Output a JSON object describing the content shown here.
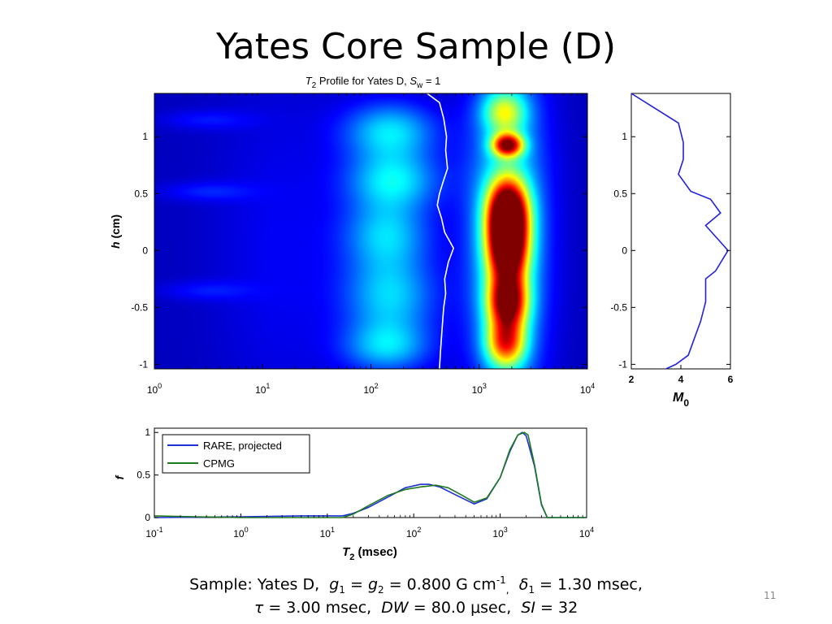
{
  "slide": {
    "title": "Yates Core Sample (D)",
    "page_number": "11"
  },
  "caption": {
    "line1_prefix": "Sample: Yates D,",
    "g1": "g",
    "g1_sub": "1",
    "eq1": "=",
    "g2": "g",
    "g2_sub": "2",
    "g_value": "= 0.800 G cm",
    "g_exp": "-1",
    "sep": ",",
    "delta": "δ",
    "delta_sub": "1",
    "delta_value": "= 1.30 msec,",
    "tau": "τ",
    "tau_value": "= 3.00 msec,",
    "dw": "DW",
    "dw_value": "= 80.0 μsec,",
    "si": "SI",
    "si_value": "= 32"
  },
  "chart_data": [
    {
      "id": "t2-profile",
      "type": "heatmap",
      "title_parts": {
        "t": "T",
        "t_sub": "2",
        "middle": " Profile for Yates D, ",
        "s": "S",
        "s_sub": "w",
        "end": " = 1"
      },
      "xlabel": "",
      "ylabel_parts": {
        "h": "h",
        "rest": " (cm)"
      },
      "x_scale": "log",
      "xlim": [
        1,
        10000
      ],
      "ylim": [
        -1.04,
        1.38
      ],
      "x_ticks": [
        {
          "base": "10",
          "exp": "0"
        },
        {
          "base": "10",
          "exp": "1"
        },
        {
          "base": "10",
          "exp": "2"
        },
        {
          "base": "10",
          "exp": "3"
        },
        {
          "base": "10",
          "exp": "4"
        }
      ],
      "y_ticks": [
        "1",
        "0.5",
        "0",
        "-0.5",
        "-1"
      ],
      "y_tick_values": [
        1,
        0.5,
        0,
        -0.5,
        -1
      ],
      "colormap": "jet",
      "intensity_sources": [
        {
          "t2": 1820,
          "h": 0.34,
          "sigma_log": 0.13,
          "sigma_h": 0.2,
          "amp": 1.0
        },
        {
          "t2": 1820,
          "h": 0.0,
          "sigma_log": 0.13,
          "sigma_h": 0.2,
          "amp": 0.86
        },
        {
          "t2": 1820,
          "h": -0.45,
          "sigma_log": 0.13,
          "sigma_h": 0.17,
          "amp": 0.82
        },
        {
          "t2": 1820,
          "h": 0.93,
          "sigma_log": 0.1,
          "sigma_h": 0.07,
          "amp": 0.78
        },
        {
          "t2": 1750,
          "h": -0.82,
          "sigma_log": 0.13,
          "sigma_h": 0.15,
          "amp": 0.6
        },
        {
          "t2": 1700,
          "h": 1.22,
          "sigma_log": 0.14,
          "sigma_h": 0.13,
          "amp": 0.38
        },
        {
          "t2": 1800,
          "h": 0.2,
          "sigma_log": 0.25,
          "sigma_h": 1.1,
          "amp": 0.35
        },
        {
          "t2": 150,
          "h": 1.05,
          "sigma_log": 0.3,
          "sigma_h": 0.18,
          "amp": 0.3
        },
        {
          "t2": 160,
          "h": 0.62,
          "sigma_log": 0.3,
          "sigma_h": 0.18,
          "amp": 0.3
        },
        {
          "t2": 140,
          "h": 0.15,
          "sigma_log": 0.28,
          "sigma_h": 0.22,
          "amp": 0.27
        },
        {
          "t2": 150,
          "h": -0.4,
          "sigma_log": 0.3,
          "sigma_h": 0.25,
          "amp": 0.28
        },
        {
          "t2": 140,
          "h": -0.85,
          "sigma_log": 0.28,
          "sigma_h": 0.16,
          "amp": 0.26
        },
        {
          "t2": 15,
          "h": 0.0,
          "sigma_log": 0.45,
          "sigma_h": 1.1,
          "amp": 0.06
        },
        {
          "t2": 3,
          "h": 1.15,
          "sigma_log": 0.3,
          "sigma_h": 0.06,
          "amp": 0.08
        },
        {
          "t2": 3,
          "h": 0.52,
          "sigma_log": 0.3,
          "sigma_h": 0.06,
          "amp": 0.09
        },
        {
          "t2": 3,
          "h": -0.35,
          "sigma_log": 0.3,
          "sigma_h": 0.06,
          "amp": 0.08
        }
      ],
      "series": [
        {
          "name": "",
          "color": "#ffffff",
          "x": [
            330,
            430,
            470,
            500,
            490,
            510,
            470,
            430,
            410,
            450,
            480,
            580,
            520,
            480,
            490,
            470,
            460,
            450,
            440,
            430
          ],
          "y": [
            1.38,
            1.3,
            1.16,
            1.0,
            0.88,
            0.72,
            0.62,
            0.5,
            0.4,
            0.28,
            0.16,
            0.02,
            -0.1,
            -0.25,
            -0.38,
            -0.5,
            -0.62,
            -0.75,
            -0.88,
            -1.04
          ]
        }
      ]
    },
    {
      "id": "m0-profile",
      "type": "line",
      "xlabel_parts": {
        "m": "M",
        "sub": "0"
      },
      "ylabel": "",
      "xlim": [
        2,
        6
      ],
      "ylim": [
        -1.04,
        1.38
      ],
      "x_ticks": [
        "2",
        "4",
        "6"
      ],
      "x_tick_values": [
        2,
        4,
        6
      ],
      "y_ticks": [
        "1",
        "0.5",
        "0",
        "-0.5",
        "-1"
      ],
      "y_tick_values": [
        1,
        0.5,
        0,
        -0.5,
        -1
      ],
      "series": [
        {
          "name": "",
          "color": "#2222dd",
          "x": [
            2.0,
            3.9,
            4.1,
            4.1,
            3.9,
            4.4,
            5.2,
            5.6,
            5.0,
            5.9,
            5.4,
            5.0,
            5.0,
            4.8,
            4.3,
            3.8,
            3.4
          ],
          "y": [
            1.38,
            1.12,
            0.95,
            0.8,
            0.67,
            0.52,
            0.45,
            0.33,
            0.22,
            0.0,
            -0.18,
            -0.25,
            -0.45,
            -0.62,
            -0.92,
            -1.0,
            -1.04
          ]
        }
      ]
    },
    {
      "id": "t2-distribution",
      "type": "line",
      "xlabel_parts": {
        "t": "T",
        "t_sub": "2",
        "rest": " (msec)"
      },
      "ylabel": "f",
      "x_scale": "log",
      "xlim": [
        0.1,
        10000
      ],
      "ylim": [
        0,
        1.05
      ],
      "x_ticks": [
        {
          "base": "10",
          "exp": "-1"
        },
        {
          "base": "10",
          "exp": "0"
        },
        {
          "base": "10",
          "exp": "1"
        },
        {
          "base": "10",
          "exp": "2"
        },
        {
          "base": "10",
          "exp": "3"
        },
        {
          "base": "10",
          "exp": "4"
        }
      ],
      "y_ticks": [
        "1",
        "0.5",
        "0"
      ],
      "y_tick_values": [
        1,
        0.5,
        0
      ],
      "legend_position": "top-left",
      "series": [
        {
          "name": "RARE, projected",
          "color": "#1f2fd6",
          "x": [
            0.1,
            1,
            5,
            15,
            20,
            30,
            50,
            80,
            120,
            150,
            200,
            300,
            500,
            700,
            1000,
            1300,
            1600,
            1800,
            2000,
            2500,
            3000,
            3500,
            5000,
            10000
          ],
          "y": [
            0.0,
            0.01,
            0.02,
            0.02,
            0.05,
            0.12,
            0.24,
            0.35,
            0.39,
            0.39,
            0.36,
            0.27,
            0.16,
            0.22,
            0.47,
            0.78,
            0.97,
            1.0,
            0.96,
            0.6,
            0.15,
            0.0,
            0.0,
            0.0
          ]
        },
        {
          "name": "CPMG",
          "color": "#1f7a1f",
          "x": [
            0.1,
            0.3,
            1,
            5,
            15,
            20,
            30,
            50,
            80,
            120,
            180,
            250,
            350,
            500,
            700,
            1000,
            1300,
            1600,
            1900,
            2100,
            2500,
            3000,
            3500,
            5000,
            10000
          ],
          "y": [
            0.02,
            0.01,
            0.0,
            0.0,
            0.0,
            0.04,
            0.14,
            0.26,
            0.33,
            0.36,
            0.38,
            0.35,
            0.27,
            0.18,
            0.23,
            0.47,
            0.8,
            0.97,
            1.0,
            0.97,
            0.62,
            0.16,
            0.0,
            0.0,
            0.0
          ]
        }
      ]
    }
  ]
}
